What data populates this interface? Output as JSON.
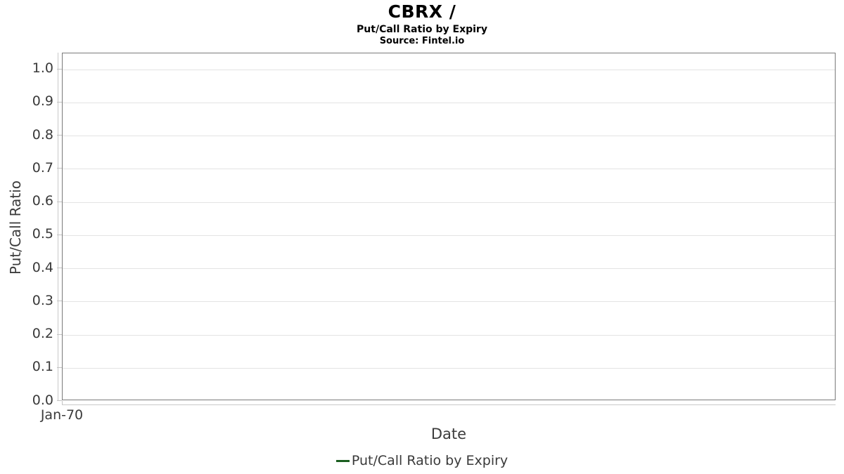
{
  "header": {
    "title": "CBRX /",
    "subtitle": "Put/Call Ratio by Expiry",
    "source": "Source: Fintel.io"
  },
  "chart_data": {
    "type": "line",
    "title": "CBRX /",
    "subtitle": "Put/Call Ratio by Expiry",
    "source_note": "Source: Fintel.io",
    "xlabel": "Date",
    "ylabel": "Put/Call Ratio",
    "ylim": [
      0.0,
      1.05
    ],
    "yticks": [
      "0.0",
      "0.1",
      "0.2",
      "0.3",
      "0.4",
      "0.5",
      "0.6",
      "0.7",
      "0.8",
      "0.9",
      "1.0"
    ],
    "xticks": [
      {
        "label": "Jan-70",
        "pos": 0.0
      }
    ],
    "grid": "horizontal-only",
    "legend_position": "bottom-center",
    "series": [
      {
        "name": "Put/Call Ratio by Expiry",
        "color": "#1b5e20",
        "x": [],
        "values": []
      }
    ]
  },
  "colors": {
    "background": "#ffffff",
    "plot_border": "#7a7a7a",
    "axis_spine": "#c9c9c9",
    "gridline": "#e3e3e3",
    "tick_mark": "#c2c2c2",
    "label_text": "#3a3a3a",
    "title_text": "#000000",
    "legend_line": "#1b5e20"
  }
}
